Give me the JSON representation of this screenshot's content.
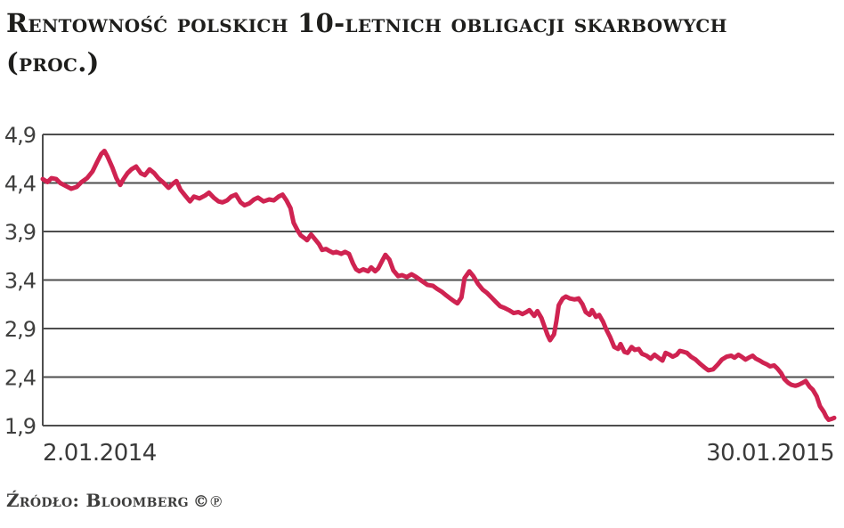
{
  "page": {
    "title_line1": "Rentowność polskich 10-letnich obligacji skarbowych",
    "title_line2": "(proc.)",
    "source_label": "Źródło: Bloomberg",
    "source_marks": "©℗"
  },
  "colors": {
    "background": "#ffffff",
    "title_text": "#1e1e1c",
    "axis_text": "#3f3f3e",
    "grid": "#4e4e4e",
    "line": "#cf2351"
  },
  "chart_data": {
    "type": "line",
    "title": "Rentowność polskich 10-letnich obligacji skarbowych (proc.)",
    "ylabel": "proc.",
    "series_name": "Rentowność 10-letnich obligacji skarbowych",
    "source": "Bloomberg",
    "grid": true,
    "legend": false,
    "x_axis": {
      "start_label": "2.01.2014",
      "end_label": "30.01.2015"
    },
    "y_axis": {
      "min": 1.9,
      "max": 4.9,
      "tick_values": [
        4.9,
        4.4,
        3.9,
        3.4,
        2.9,
        2.4,
        1.9
      ],
      "tick_labels": [
        "4,9",
        "4,4",
        "3,9",
        "3,4",
        "2,9",
        "2,4",
        "1,9"
      ]
    },
    "points": [
      [
        0.0,
        4.44
      ],
      [
        0.006,
        4.41
      ],
      [
        0.011,
        4.45
      ],
      [
        0.017,
        4.44
      ],
      [
        0.022,
        4.4
      ],
      [
        0.029,
        4.37
      ],
      [
        0.036,
        4.34
      ],
      [
        0.043,
        4.36
      ],
      [
        0.049,
        4.41
      ],
      [
        0.056,
        4.45
      ],
      [
        0.063,
        4.52
      ],
      [
        0.069,
        4.62
      ],
      [
        0.074,
        4.7
      ],
      [
        0.078,
        4.73
      ],
      [
        0.082,
        4.67
      ],
      [
        0.088,
        4.56
      ],
      [
        0.093,
        4.45
      ],
      [
        0.098,
        4.38
      ],
      [
        0.102,
        4.44
      ],
      [
        0.107,
        4.5
      ],
      [
        0.112,
        4.54
      ],
      [
        0.118,
        4.57
      ],
      [
        0.124,
        4.5
      ],
      [
        0.129,
        4.48
      ],
      [
        0.135,
        4.54
      ],
      [
        0.141,
        4.5
      ],
      [
        0.146,
        4.45
      ],
      [
        0.153,
        4.4
      ],
      [
        0.159,
        4.35
      ],
      [
        0.164,
        4.39
      ],
      [
        0.169,
        4.42
      ],
      [
        0.174,
        4.33
      ],
      [
        0.18,
        4.27
      ],
      [
        0.186,
        4.21
      ],
      [
        0.191,
        4.26
      ],
      [
        0.198,
        4.24
      ],
      [
        0.205,
        4.27
      ],
      [
        0.21,
        4.3
      ],
      [
        0.216,
        4.25
      ],
      [
        0.222,
        4.21
      ],
      [
        0.227,
        4.2
      ],
      [
        0.233,
        4.22
      ],
      [
        0.238,
        4.26
      ],
      [
        0.244,
        4.28
      ],
      [
        0.25,
        4.2
      ],
      [
        0.255,
        4.17
      ],
      [
        0.261,
        4.19
      ],
      [
        0.267,
        4.23
      ],
      [
        0.272,
        4.25
      ],
      [
        0.279,
        4.21
      ],
      [
        0.286,
        4.23
      ],
      [
        0.292,
        4.22
      ],
      [
        0.298,
        4.26
      ],
      [
        0.303,
        4.28
      ],
      [
        0.308,
        4.22
      ],
      [
        0.313,
        4.14
      ],
      [
        0.317,
        3.99
      ],
      [
        0.322,
        3.91
      ],
      [
        0.326,
        3.86
      ],
      [
        0.331,
        3.83
      ],
      [
        0.334,
        3.81
      ],
      [
        0.339,
        3.87
      ],
      [
        0.343,
        3.83
      ],
      [
        0.349,
        3.77
      ],
      [
        0.353,
        3.71
      ],
      [
        0.358,
        3.72
      ],
      [
        0.362,
        3.7
      ],
      [
        0.367,
        3.68
      ],
      [
        0.371,
        3.69
      ],
      [
        0.377,
        3.67
      ],
      [
        0.382,
        3.69
      ],
      [
        0.387,
        3.67
      ],
      [
        0.392,
        3.57
      ],
      [
        0.396,
        3.51
      ],
      [
        0.4,
        3.49
      ],
      [
        0.405,
        3.51
      ],
      [
        0.411,
        3.49
      ],
      [
        0.415,
        3.53
      ],
      [
        0.42,
        3.49
      ],
      [
        0.424,
        3.52
      ],
      [
        0.429,
        3.6
      ],
      [
        0.433,
        3.66
      ],
      [
        0.438,
        3.61
      ],
      [
        0.443,
        3.5
      ],
      [
        0.449,
        3.44
      ],
      [
        0.454,
        3.45
      ],
      [
        0.46,
        3.43
      ],
      [
        0.466,
        3.46
      ],
      [
        0.472,
        3.43
      ],
      [
        0.479,
        3.39
      ],
      [
        0.486,
        3.35
      ],
      [
        0.493,
        3.34
      ],
      [
        0.498,
        3.31
      ],
      [
        0.504,
        3.28
      ],
      [
        0.51,
        3.24
      ],
      [
        0.515,
        3.21
      ],
      [
        0.52,
        3.18
      ],
      [
        0.524,
        3.16
      ],
      [
        0.529,
        3.22
      ],
      [
        0.533,
        3.42
      ],
      [
        0.539,
        3.49
      ],
      [
        0.544,
        3.44
      ],
      [
        0.55,
        3.36
      ],
      [
        0.556,
        3.3
      ],
      [
        0.561,
        3.27
      ],
      [
        0.567,
        3.22
      ],
      [
        0.573,
        3.17
      ],
      [
        0.578,
        3.13
      ],
      [
        0.584,
        3.11
      ],
      [
        0.589,
        3.09
      ],
      [
        0.595,
        3.06
      ],
      [
        0.601,
        3.07
      ],
      [
        0.606,
        3.05
      ],
      [
        0.611,
        3.07
      ],
      [
        0.615,
        3.09
      ],
      [
        0.621,
        3.03
      ],
      [
        0.625,
        3.08
      ],
      [
        0.63,
        3.01
      ],
      [
        0.634,
        2.92
      ],
      [
        0.638,
        2.83
      ],
      [
        0.641,
        2.78
      ],
      [
        0.646,
        2.84
      ],
      [
        0.649,
        2.98
      ],
      [
        0.652,
        3.14
      ],
      [
        0.657,
        3.21
      ],
      [
        0.661,
        3.23
      ],
      [
        0.666,
        3.21
      ],
      [
        0.672,
        3.2
      ],
      [
        0.677,
        3.21
      ],
      [
        0.682,
        3.15
      ],
      [
        0.686,
        3.07
      ],
      [
        0.691,
        3.04
      ],
      [
        0.694,
        3.09
      ],
      [
        0.699,
        3.02
      ],
      [
        0.703,
        3.04
      ],
      [
        0.708,
        2.97
      ],
      [
        0.712,
        2.89
      ],
      [
        0.717,
        2.81
      ],
      [
        0.722,
        2.71
      ],
      [
        0.727,
        2.69
      ],
      [
        0.73,
        2.74
      ],
      [
        0.735,
        2.66
      ],
      [
        0.739,
        2.65
      ],
      [
        0.744,
        2.71
      ],
      [
        0.748,
        2.68
      ],
      [
        0.753,
        2.69
      ],
      [
        0.757,
        2.64
      ],
      [
        0.763,
        2.62
      ],
      [
        0.768,
        2.59
      ],
      [
        0.773,
        2.63
      ],
      [
        0.778,
        2.6
      ],
      [
        0.783,
        2.57
      ],
      [
        0.787,
        2.65
      ],
      [
        0.792,
        2.63
      ],
      [
        0.796,
        2.61
      ],
      [
        0.801,
        2.63
      ],
      [
        0.805,
        2.67
      ],
      [
        0.81,
        2.66
      ],
      [
        0.814,
        2.65
      ],
      [
        0.819,
        2.61
      ],
      [
        0.825,
        2.58
      ],
      [
        0.83,
        2.54
      ],
      [
        0.836,
        2.5
      ],
      [
        0.841,
        2.47
      ],
      [
        0.847,
        2.48
      ],
      [
        0.853,
        2.53
      ],
      [
        0.858,
        2.58
      ],
      [
        0.864,
        2.61
      ],
      [
        0.87,
        2.62
      ],
      [
        0.874,
        2.6
      ],
      [
        0.879,
        2.63
      ],
      [
        0.883,
        2.61
      ],
      [
        0.888,
        2.58
      ],
      [
        0.892,
        2.6
      ],
      [
        0.897,
        2.62
      ],
      [
        0.901,
        2.59
      ],
      [
        0.906,
        2.57
      ],
      [
        0.91,
        2.55
      ],
      [
        0.915,
        2.53
      ],
      [
        0.919,
        2.51
      ],
      [
        0.924,
        2.52
      ],
      [
        0.928,
        2.49
      ],
      [
        0.933,
        2.44
      ],
      [
        0.937,
        2.38
      ],
      [
        0.942,
        2.34
      ],
      [
        0.946,
        2.32
      ],
      [
        0.951,
        2.31
      ],
      [
        0.955,
        2.32
      ],
      [
        0.96,
        2.34
      ],
      [
        0.964,
        2.36
      ],
      [
        0.969,
        2.3
      ],
      [
        0.973,
        2.27
      ],
      [
        0.978,
        2.2
      ],
      [
        0.982,
        2.1
      ],
      [
        0.987,
        2.04
      ],
      [
        0.99,
        1.99
      ],
      [
        0.993,
        1.96
      ],
      [
        0.997,
        1.97
      ],
      [
        1.0,
        1.98
      ]
    ]
  }
}
